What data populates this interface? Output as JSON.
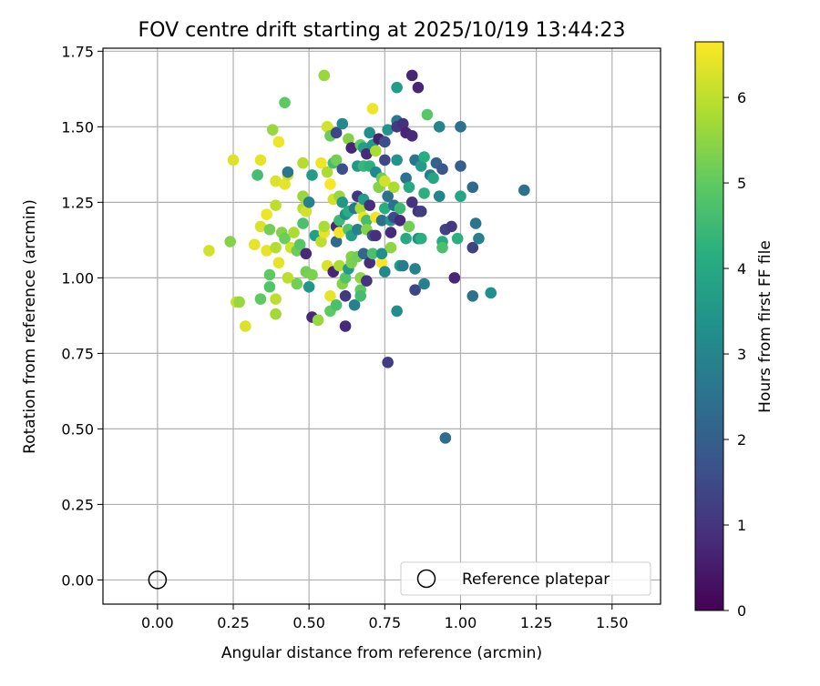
{
  "chart_data": {
    "type": "scatter",
    "title": "FOV centre drift starting at 2025/10/19 13:44:23",
    "xlabel": "Angular distance from reference (arcmin)",
    "ylabel": "Rotation from reference (arcmin)",
    "xlim": [
      -0.18,
      1.66
    ],
    "ylim": [
      -0.08,
      1.76
    ],
    "xticks": [
      "0.00",
      "0.25",
      "0.50",
      "0.75",
      "1.00",
      "1.25",
      "1.50"
    ],
    "yticks": [
      "0.00",
      "0.25",
      "0.50",
      "0.75",
      "1.00",
      "1.25",
      "1.50",
      "1.75"
    ],
    "grid": true,
    "colorbar": {
      "label": "Hours from first FF file",
      "colormap": "viridis",
      "range": [
        0,
        6.65
      ],
      "ticks": [
        "0",
        "1",
        "2",
        "3",
        "4",
        "5",
        "6"
      ]
    },
    "reference": {
      "name": "Reference platepar",
      "x": 0.0,
      "y": 0.0
    },
    "legend": {
      "position": "lower-right",
      "entries": [
        "Reference platepar"
      ]
    },
    "points": [
      [
        0.17,
        1.09,
        6.2
      ],
      [
        0.24,
        1.12,
        5.4
      ],
      [
        0.25,
        1.39,
        6.3
      ],
      [
        0.26,
        0.92,
        6.1
      ],
      [
        0.27,
        0.92,
        5.6
      ],
      [
        0.29,
        0.84,
        6.3
      ],
      [
        0.32,
        1.11,
        6.4
      ],
      [
        0.33,
        1.34,
        4.6
      ],
      [
        0.34,
        1.17,
        6.3
      ],
      [
        0.34,
        1.39,
        6.4
      ],
      [
        0.34,
        0.93,
        5.0
      ],
      [
        0.36,
        1.09,
        6.4
      ],
      [
        0.36,
        1.21,
        6.5
      ],
      [
        0.37,
        1.01,
        5.0
      ],
      [
        0.37,
        1.16,
        5.2
      ],
      [
        0.37,
        0.97,
        4.8
      ],
      [
        0.38,
        1.49,
        5.6
      ],
      [
        0.39,
        1.32,
        6.3
      ],
      [
        0.39,
        1.24,
        6.0
      ],
      [
        0.39,
        1.1,
        5.9
      ],
      [
        0.39,
        0.93,
        6.0
      ],
      [
        0.39,
        0.88,
        5.7
      ],
      [
        0.4,
        1.45,
        6.5
      ],
      [
        0.4,
        1.05,
        6.4
      ],
      [
        0.41,
        1.15,
        5.4
      ],
      [
        0.42,
        1.58,
        5.0
      ],
      [
        0.42,
        1.13,
        5.1
      ],
      [
        0.42,
        1.31,
        6.4
      ],
      [
        0.43,
        1.34,
        6.2
      ],
      [
        0.43,
        1.0,
        6.0
      ],
      [
        0.43,
        1.35,
        2.6
      ],
      [
        0.44,
        1.1,
        6.2
      ],
      [
        0.45,
        1.15,
        5.8
      ],
      [
        0.46,
        1.09,
        5.1
      ],
      [
        0.46,
        0.98,
        5.2
      ],
      [
        0.47,
        1.11,
        4.9
      ],
      [
        0.48,
        1.38,
        5.9
      ],
      [
        0.48,
        1.27,
        5.6
      ],
      [
        0.48,
        1.23,
        5.9
      ],
      [
        0.48,
        1.18,
        4.7
      ],
      [
        0.49,
        1.08,
        0.8
      ],
      [
        0.49,
        1.22,
        6.2
      ],
      [
        0.49,
        1.02,
        5.2
      ],
      [
        0.5,
        0.97,
        3.5
      ],
      [
        0.5,
        1.25,
        2.9
      ],
      [
        0.51,
        1.34,
        3.6
      ],
      [
        0.51,
        0.87,
        0.8
      ],
      [
        0.51,
        1.01,
        5.3
      ],
      [
        0.52,
        1.14,
        3.7
      ],
      [
        0.53,
        0.86,
        5.6
      ],
      [
        0.54,
        1.38,
        6.5
      ],
      [
        0.54,
        1.12,
        6.0
      ],
      [
        0.55,
        1.67,
        5.6
      ],
      [
        0.55,
        1.15,
        6.4
      ],
      [
        0.55,
        1.17,
        5.8
      ],
      [
        0.56,
        1.5,
        6.2
      ],
      [
        0.56,
        1.35,
        5.8
      ],
      [
        0.56,
        1.04,
        6.3
      ],
      [
        0.57,
        1.31,
        6.6
      ],
      [
        0.57,
        0.94,
        6.4
      ],
      [
        0.57,
        0.89,
        5.0
      ],
      [
        0.57,
        1.47,
        5.1
      ],
      [
        0.58,
        1.02,
        0.7
      ],
      [
        0.58,
        1.38,
        4.6
      ],
      [
        0.58,
        1.26,
        6.2
      ],
      [
        0.59,
        1.39,
        5.2
      ],
      [
        0.59,
        1.17,
        0.8
      ],
      [
        0.59,
        1.12,
        2.3
      ],
      [
        0.59,
        0.91,
        4.7
      ],
      [
        0.59,
        1.48,
        1.4
      ],
      [
        0.6,
        1.15,
        6.6
      ],
      [
        0.6,
        1.27,
        5.6
      ],
      [
        0.6,
        1.04,
        5.8
      ],
      [
        0.6,
        1.19,
        4.5
      ],
      [
        0.61,
        1.51,
        3.1
      ],
      [
        0.61,
        1.36,
        1.6
      ],
      [
        0.61,
        0.98,
        5.4
      ],
      [
        0.61,
        1.25,
        3.5
      ],
      [
        0.62,
        1.0,
        4.8
      ],
      [
        0.62,
        0.84,
        0.8
      ],
      [
        0.62,
        0.94,
        1.1
      ],
      [
        0.62,
        1.21,
        3.3
      ],
      [
        0.63,
        1.16,
        4.8
      ],
      [
        0.63,
        1.03,
        3.6
      ],
      [
        0.63,
        1.46,
        5.4
      ],
      [
        0.63,
        1.22,
        4.1
      ],
      [
        0.64,
        1.43,
        0.7
      ],
      [
        0.64,
        1.07,
        5.4
      ],
      [
        0.64,
        1.14,
        3.7
      ],
      [
        0.64,
        1.05,
        5.3
      ],
      [
        0.65,
        1.23,
        2.6
      ],
      [
        0.65,
        0.91,
        2.9
      ],
      [
        0.66,
        1.07,
        5.2
      ],
      [
        0.66,
        1.37,
        3.5
      ],
      [
        0.66,
        1.27,
        1.0
      ],
      [
        0.66,
        1.16,
        2.9
      ],
      [
        0.67,
        1.0,
        5.5
      ],
      [
        0.67,
        0.96,
        5.0
      ],
      [
        0.67,
        0.94,
        4.6
      ],
      [
        0.67,
        1.23,
        5.8
      ],
      [
        0.67,
        1.44,
        5.0
      ],
      [
        0.68,
        1.43,
        3.7
      ],
      [
        0.68,
        1.37,
        4.4
      ],
      [
        0.68,
        1.26,
        3.6
      ],
      [
        0.68,
        1.2,
        6.5
      ],
      [
        0.68,
        1.08,
        2.2
      ],
      [
        0.69,
        1.41,
        0.8
      ],
      [
        0.69,
        0.99,
        1.0
      ],
      [
        0.69,
        1.19,
        4.6
      ],
      [
        0.69,
        1.16,
        5.4
      ],
      [
        0.7,
        1.37,
        4.2
      ],
      [
        0.7,
        1.05,
        0.9
      ],
      [
        0.7,
        1.48,
        3.3
      ],
      [
        0.7,
        1.24,
        0.9
      ],
      [
        0.71,
        1.56,
        6.5
      ],
      [
        0.71,
        1.14,
        1.8
      ],
      [
        0.71,
        1.44,
        3.5
      ],
      [
        0.71,
        1.08,
        4.7
      ],
      [
        0.72,
        1.42,
        5.8
      ],
      [
        0.72,
        1.35,
        3.1
      ],
      [
        0.72,
        1.2,
        6.5
      ],
      [
        0.72,
        1.14,
        0.9
      ],
      [
        0.73,
        1.46,
        0.6
      ],
      [
        0.73,
        1.3,
        5.4
      ],
      [
        0.74,
        1.05,
        6.6
      ],
      [
        0.74,
        1.33,
        5.1
      ],
      [
        0.74,
        1.19,
        2.4
      ],
      [
        0.74,
        1.08,
        3.3
      ],
      [
        0.75,
        1.45,
        1.6
      ],
      [
        0.75,
        1.39,
        1.4
      ],
      [
        0.75,
        1.23,
        4.1
      ],
      [
        0.75,
        1.02,
        3.1
      ],
      [
        0.75,
        1.32,
        6.2
      ],
      [
        0.76,
        0.72,
        1.2
      ],
      [
        0.76,
        1.27,
        2.5
      ],
      [
        0.76,
        1.49,
        3.4
      ],
      [
        0.77,
        1.15,
        0.8
      ],
      [
        0.77,
        1.1,
        5.5
      ],
      [
        0.77,
        1.19,
        3.5
      ],
      [
        0.78,
        1.3,
        5.8
      ],
      [
        0.78,
        1.2,
        1.5
      ],
      [
        0.78,
        1.24,
        2.5
      ],
      [
        0.79,
        1.52,
        2.7
      ],
      [
        0.79,
        1.39,
        3.4
      ],
      [
        0.79,
        1.5,
        1.1
      ],
      [
        0.79,
        0.89,
        3.2
      ],
      [
        0.79,
        1.63,
        3.6
      ],
      [
        0.8,
        1.19,
        0.8
      ],
      [
        0.8,
        1.23,
        4.5
      ],
      [
        0.8,
        1.04,
        3.6
      ],
      [
        0.81,
        1.51,
        0.9
      ],
      [
        0.81,
        1.04,
        2.8
      ],
      [
        0.82,
        1.48,
        0.7
      ],
      [
        0.82,
        1.13,
        4.0
      ],
      [
        0.82,
        1.33,
        2.5
      ],
      [
        0.83,
        1.3,
        4.0
      ],
      [
        0.83,
        1.17,
        5.2
      ],
      [
        0.84,
        1.67,
        0.7
      ],
      [
        0.84,
        1.47,
        0.8
      ],
      [
        0.84,
        1.25,
        1.0
      ],
      [
        0.85,
        1.39,
        2.6
      ],
      [
        0.85,
        1.03,
        2.9
      ],
      [
        0.85,
        0.96,
        1.4
      ],
      [
        0.86,
        1.22,
        1.0
      ],
      [
        0.86,
        1.13,
        3.3
      ],
      [
        0.86,
        1.63,
        0.7
      ],
      [
        0.87,
        1.37,
        3.6
      ],
      [
        0.87,
        1.13,
        4.2
      ],
      [
        0.87,
        1.22,
        1.2
      ],
      [
        0.88,
        1.28,
        4.2
      ],
      [
        0.88,
        0.98,
        2.9
      ],
      [
        0.88,
        1.4,
        4.1
      ],
      [
        0.89,
        1.54,
        4.9
      ],
      [
        0.9,
        1.34,
        2.8
      ],
      [
        0.91,
        1.33,
        3.9
      ],
      [
        0.92,
        1.38,
        2.1
      ],
      [
        0.93,
        1.5,
        3.0
      ],
      [
        0.93,
        1.27,
        3.0
      ],
      [
        0.94,
        1.12,
        4.0
      ],
      [
        0.94,
        1.1,
        4.7
      ],
      [
        0.94,
        1.36,
        1.8
      ],
      [
        0.95,
        0.47,
        2.4
      ],
      [
        0.95,
        1.16,
        1.3
      ],
      [
        0.97,
        1.17,
        1.1
      ],
      [
        0.98,
        1.0,
        0.7
      ],
      [
        0.99,
        1.13,
        4.2
      ],
      [
        1.0,
        1.27,
        3.9
      ],
      [
        1.0,
        1.5,
        2.5
      ],
      [
        1.0,
        1.37,
        2.0
      ],
      [
        1.04,
        1.3,
        2.3
      ],
      [
        1.04,
        1.1,
        1.3
      ],
      [
        1.04,
        0.94,
        2.5
      ],
      [
        1.05,
        1.18,
        2.6
      ],
      [
        1.06,
        1.13,
        2.9
      ],
      [
        1.1,
        0.95,
        3.3
      ],
      [
        1.21,
        1.29,
        2.5
      ]
    ]
  }
}
